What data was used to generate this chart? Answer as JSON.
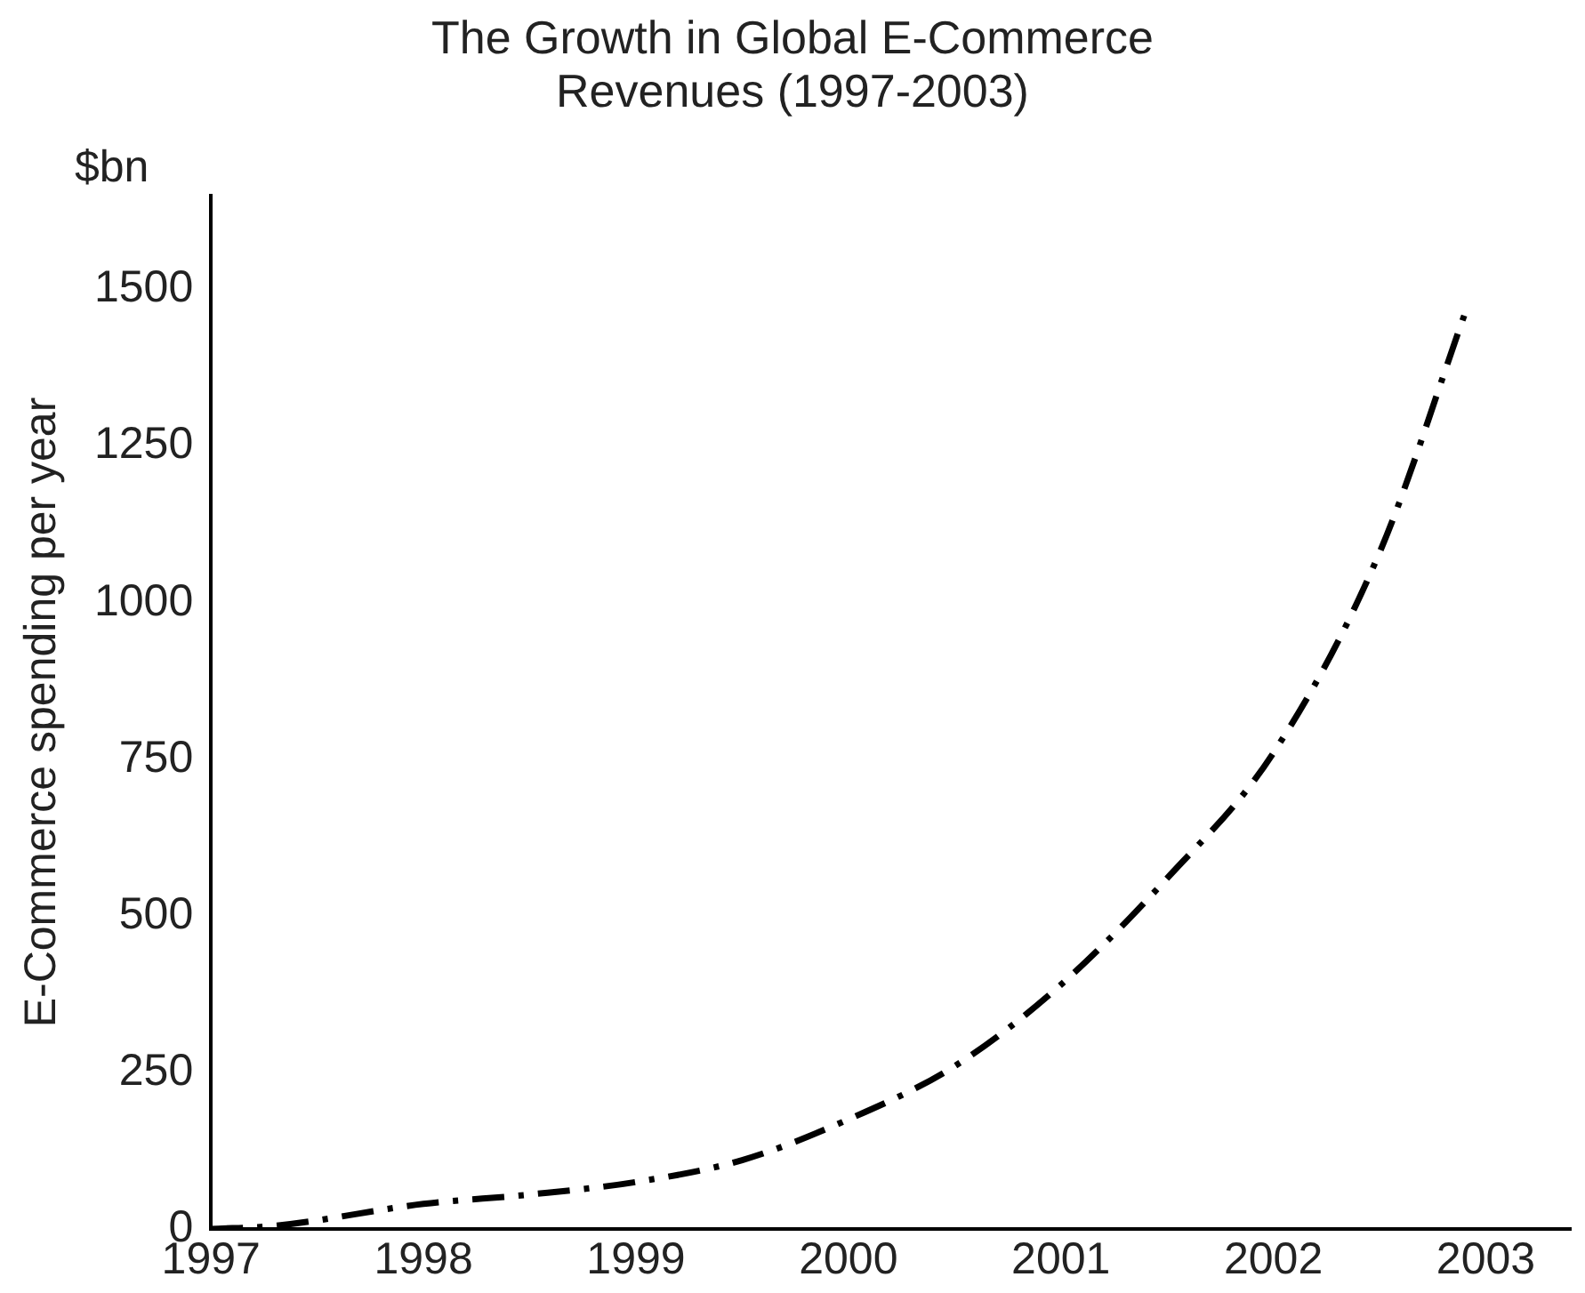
{
  "chart_data": {
    "type": "line",
    "title": [
      "The Growth in Global E-Commerce",
      "Revenues (1997-2003)"
    ],
    "ylabel": "E-Commerce spending per year",
    "annotations": [
      "$bn"
    ],
    "x": [
      1997,
      1997.3,
      1998,
      1998.5,
      1999,
      1999.5,
      2000,
      2000.5,
      2001,
      2001.5,
      2002,
      2002.5,
      2002.9
    ],
    "series": [
      {
        "color": "#000000",
        "values": [
          0,
          5,
          40,
          55,
          75,
          110,
          175,
          260,
          390,
          560,
          760,
          1080,
          1460
        ]
      }
    ],
    "xlim": [
      1997,
      2003.4
    ],
    "xticks": [
      1997,
      1998,
      1999,
      2000,
      2001,
      2002,
      2003
    ],
    "ylim": [
      0,
      1650
    ],
    "yticks": [
      0,
      250,
      500,
      750,
      1000,
      1250,
      1500
    ],
    "grid": false,
    "legend": false,
    "marker": "none",
    "line_style": "dashed"
  }
}
